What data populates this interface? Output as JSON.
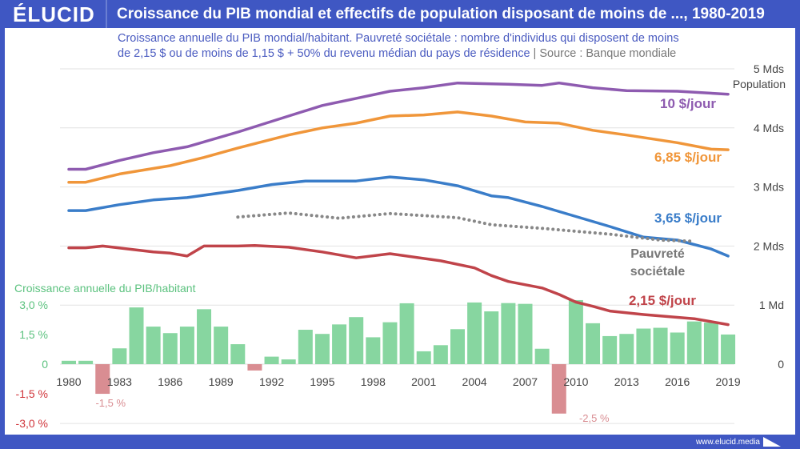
{
  "header": {
    "logo": "ÉLUCID",
    "title": "Croissance du PIB mondial et effectifs de population disposant de moins de ..., 1980-2019"
  },
  "subtitle": {
    "line1": "Croissance annuelle du PIB mondial/habitant. Pauvreté sociétale : nombre d'individus qui disposent de moins",
    "line2": "de 2,15 $ ou de moins de 1,15 $ + 50% du revenu médian du pays de résidence",
    "separator": "|",
    "source": "Source : Banque mondiale"
  },
  "footer": {
    "url": "www.elucid.media"
  },
  "colors": {
    "brand": "#3f57c3",
    "bar_pos": "#87d6a0",
    "bar_neg": "#d98d92",
    "purple": "#8e5bb0",
    "orange": "#f0963a",
    "blue": "#3a7dc9",
    "red": "#c0444a",
    "gray": "#888888"
  },
  "chart_data": {
    "type": "bar+line",
    "title": "Croissance du PIB mondial et effectifs de population disposant de moins de ..., 1980-2019",
    "x_ticks": [
      "1980",
      "1983",
      "1986",
      "1989",
      "1992",
      "1995",
      "1998",
      "2001",
      "2004",
      "2007",
      "2010",
      "2013",
      "2016",
      "2019"
    ],
    "bars": {
      "name": "Croissance annuelle du PIB/habitant",
      "unit": "%",
      "years": [
        1980,
        1981,
        1982,
        1983,
        1984,
        1985,
        1986,
        1987,
        1988,
        1989,
        1990,
        1991,
        1992,
        1993,
        1994,
        1995,
        1996,
        1997,
        1998,
        1999,
        2000,
        2001,
        2002,
        2003,
        2004,
        2005,
        2006,
        2007,
        2008,
        2009,
        2010,
        2011,
        2012,
        2013,
        2014,
        2015,
        2016,
        2017,
        2018,
        2019
      ],
      "values": [
        0.17,
        0.17,
        -1.5,
        0.8,
        2.87,
        1.9,
        1.57,
        1.9,
        2.78,
        1.9,
        1.01,
        -0.32,
        0.38,
        0.24,
        1.74,
        1.53,
        2.01,
        2.38,
        1.36,
        2.12,
        3.08,
        0.65,
        0.96,
        1.77,
        3.12,
        2.67,
        3.09,
        3.05,
        0.78,
        -2.5,
        3.24,
        2.07,
        1.42,
        1.53,
        1.8,
        1.84,
        1.6,
        2.16,
        2.1,
        1.5
      ],
      "ylim": [
        -3,
        3
      ],
      "y_ticks": [
        "3,0 %",
        "1,5 %",
        "0",
        "-1,5 %",
        "-3,0 %"
      ],
      "annotations": [
        "-1,5 %",
        "-2,5 %"
      ]
    },
    "lines": {
      "unit": "Mds",
      "ylabel": "Population",
      "ylim": [
        0,
        5
      ],
      "y_ticks": [
        "5 Mds",
        "4 Mds",
        "3 Mds",
        "2 Mds",
        "1 Md",
        "0"
      ],
      "series": [
        {
          "name": "10 $/jour",
          "color": "#8e5bb0",
          "dotted": false,
          "points": [
            [
              1980,
              3.3
            ],
            [
              1981,
              3.3
            ],
            [
              1983,
              3.45
            ],
            [
              1985,
              3.58
            ],
            [
              1987,
              3.68
            ],
            [
              1990,
              3.93
            ],
            [
              1993,
              4.2
            ],
            [
              1995,
              4.38
            ],
            [
              1997,
              4.5
            ],
            [
              1999,
              4.62
            ],
            [
              2001,
              4.68
            ],
            [
              2003,
              4.76
            ],
            [
              2006,
              4.74
            ],
            [
              2008,
              4.72
            ],
            [
              2009,
              4.76
            ],
            [
              2011,
              4.68
            ],
            [
              2013,
              4.63
            ],
            [
              2016,
              4.62
            ],
            [
              2019,
              4.57
            ]
          ]
        },
        {
          "name": "6,85 $/jour",
          "color": "#f0963a",
          "dotted": false,
          "points": [
            [
              1980,
              3.08
            ],
            [
              1981,
              3.08
            ],
            [
              1983,
              3.22
            ],
            [
              1986,
              3.36
            ],
            [
              1988,
              3.5
            ],
            [
              1990,
              3.66
            ],
            [
              1993,
              3.88
            ],
            [
              1995,
              4.0
            ],
            [
              1997,
              4.08
            ],
            [
              1999,
              4.2
            ],
            [
              2001,
              4.22
            ],
            [
              2003,
              4.27
            ],
            [
              2005,
              4.2
            ],
            [
              2007,
              4.1
            ],
            [
              2009,
              4.08
            ],
            [
              2011,
              3.96
            ],
            [
              2013,
              3.88
            ],
            [
              2016,
              3.75
            ],
            [
              2018,
              3.64
            ],
            [
              2019,
              3.63
            ]
          ]
        },
        {
          "name": "3,65 $/jour",
          "color": "#3a7dc9",
          "dotted": false,
          "points": [
            [
              1980,
              2.6
            ],
            [
              1981,
              2.6
            ],
            [
              1983,
              2.7
            ],
            [
              1985,
              2.78
            ],
            [
              1987,
              2.82
            ],
            [
              1990,
              2.94
            ],
            [
              1992,
              3.04
            ],
            [
              1994,
              3.1
            ],
            [
              1997,
              3.1
            ],
            [
              1999,
              3.17
            ],
            [
              2001,
              3.12
            ],
            [
              2003,
              3.02
            ],
            [
              2005,
              2.85
            ],
            [
              2006,
              2.82
            ],
            [
              2008,
              2.67
            ],
            [
              2010,
              2.5
            ],
            [
              2012,
              2.33
            ],
            [
              2014,
              2.15
            ],
            [
              2016,
              2.1
            ],
            [
              2018,
              1.95
            ],
            [
              2019,
              1.83
            ]
          ]
        },
        {
          "name": "Pauvreté sociétale",
          "color": "#888888",
          "dotted": true,
          "points": [
            [
              1990,
              2.49
            ],
            [
              1993,
              2.56
            ],
            [
              1996,
              2.47
            ],
            [
              1999,
              2.55
            ],
            [
              2003,
              2.48
            ],
            [
              2005,
              2.36
            ],
            [
              2008,
              2.3
            ],
            [
              2010,
              2.25
            ],
            [
              2012,
              2.2
            ],
            [
              2015,
              2.1
            ],
            [
              2017,
              2.08
            ]
          ]
        },
        {
          "name": "2,15 $/jour",
          "color": "#c0444a",
          "dotted": false,
          "points": [
            [
              1980,
              1.97
            ],
            [
              1981,
              1.97
            ],
            [
              1982,
              2.0
            ],
            [
              1985,
              1.9
            ],
            [
              1986,
              1.88
            ],
            [
              1987,
              1.83
            ],
            [
              1988,
              2.0
            ],
            [
              1990,
              2.0
            ],
            [
              1991,
              2.01
            ],
            [
              1993,
              1.98
            ],
            [
              1995,
              1.9
            ],
            [
              1997,
              1.8
            ],
            [
              1999,
              1.87
            ],
            [
              2002,
              1.75
            ],
            [
              2004,
              1.63
            ],
            [
              2005,
              1.5
            ],
            [
              2006,
              1.4
            ],
            [
              2008,
              1.29
            ],
            [
              2009,
              1.18
            ],
            [
              2010,
              1.05
            ],
            [
              2011,
              0.98
            ],
            [
              2012,
              0.9
            ],
            [
              2014,
              0.84
            ],
            [
              2017,
              0.77
            ],
            [
              2019,
              0.67
            ]
          ]
        }
      ]
    }
  }
}
